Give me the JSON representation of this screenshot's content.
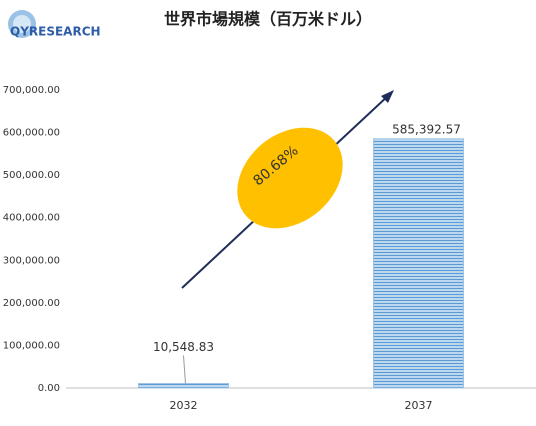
{
  "logo": "QYRESEARCH",
  "chart_data": {
    "type": "bar",
    "title": "世界市場規模（百万米ドル）",
    "categories": [
      "2032",
      "2037"
    ],
    "values": [
      10548.83,
      585392.57
    ],
    "value_labels": [
      "10,548.83",
      "585,392.57"
    ],
    "color": "#9dc3e6",
    "ylim": [
      0,
      700000
    ],
    "yticks": [
      {
        "value": 0,
        "label": "0.00"
      },
      {
        "value": 100000,
        "label": "100,000.00"
      },
      {
        "value": 200000,
        "label": "200,000.00"
      },
      {
        "value": 300000,
        "label": "300,000.00"
      },
      {
        "value": 400000,
        "label": "400,000.00"
      },
      {
        "value": 500000,
        "label": "500,000.00"
      },
      {
        "value": 600000,
        "label": "600,000.00"
      },
      {
        "value": 700000,
        "label": "700,000.00"
      }
    ],
    "grid": false,
    "annotation": "80.68%"
  }
}
